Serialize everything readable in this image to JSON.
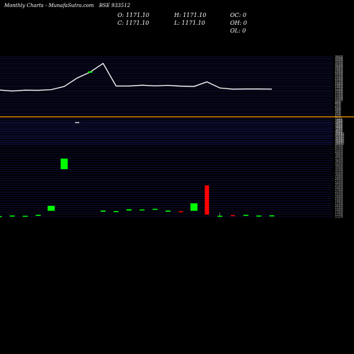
{
  "header": {
    "brand": "Monthly Charts",
    "site": "- MunafaSutra.com",
    "symbol": "BSE 933512"
  },
  "ohlc": {
    "o": "O: 1171.10",
    "c": "C: 1171.10",
    "h": "H: 1171.10",
    "l": "L: 1171.10",
    "oc": "OC: 0",
    "oh": "OH: 0",
    "ol": "OL: 0"
  },
  "colors": {
    "background": "#000000",
    "grid": "#1a1a66",
    "separator": "#ff9900",
    "up": "#00ff00",
    "down": "#ff0000",
    "line": "#ffffff"
  },
  "chart_data": [
    {
      "type": "line",
      "panel": "price",
      "grid": true,
      "x": [
        1,
        2,
        3,
        4,
        5,
        6,
        7,
        8,
        9,
        10,
        11,
        12,
        13,
        14,
        15,
        16,
        17,
        18,
        19,
        20,
        21,
        22
      ],
      "values": [
        1590,
        1530,
        1580,
        1570,
        1610,
        1800,
        2310,
        2670,
        3190,
        1830,
        1830,
        1880,
        1840,
        1870,
        1820,
        1800,
        2080,
        1710,
        1640,
        1650,
        1650,
        1640
      ],
      "extra_marks": [
        {
          "x": 8,
          "y": 2670
        }
      ],
      "ylim": [
        -1650,
        3600
      ],
      "tick_labels": [
        "3600",
        "3500",
        "3400",
        "3300",
        "3200",
        "3100",
        "3000",
        "2900",
        "2800",
        "2700",
        "2600",
        "2500",
        "2400",
        "2300",
        "2200",
        "2100",
        "2000",
        "1900",
        "1800",
        "1700",
        "1600",
        "1500",
        "1400",
        "1300",
        "1200",
        "1100",
        "1000",
        "900",
        "800",
        "700",
        "600",
        "500",
        "400",
        "300",
        "200",
        "100",
        "0",
        "-100",
        "-200",
        "-300",
        "-400",
        "-500",
        "-600",
        "-700",
        "-800",
        "-900",
        "-1000",
        "-1100",
        "-1200",
        "-1300",
        "-1400",
        "-1500",
        "-1600"
      ]
    },
    {
      "type": "bar",
      "panel": "volume",
      "grid": true,
      "bars": [
        {
          "x": 1,
          "start": 1150,
          "end": 1140,
          "dir": "up"
        },
        {
          "x": 2,
          "start": 1170,
          "end": 1160,
          "dir": "up"
        },
        {
          "x": 3,
          "start": 1160,
          "end": 1160,
          "dir": "up"
        },
        {
          "x": 4,
          "start": 1200,
          "end": 1190,
          "dir": "up"
        },
        {
          "x": 5,
          "start": 1600,
          "end": 1380,
          "dir": "up"
        },
        {
          "x": 6,
          "start": 3700,
          "end": 3230,
          "dir": "up"
        },
        {
          "x": 9,
          "start": 1390,
          "end": 1340,
          "dir": "up"
        },
        {
          "x": 10,
          "start": 1370,
          "end": 1360,
          "dir": "up"
        },
        {
          "x": 11,
          "start": 1450,
          "end": 1390,
          "dir": "up"
        },
        {
          "x": 12,
          "start": 1440,
          "end": 1410,
          "dir": "up"
        },
        {
          "x": 13,
          "start": 1470,
          "end": 1450,
          "dir": "up"
        },
        {
          "x": 14,
          "start": 1390,
          "end": 1340,
          "dir": "up"
        },
        {
          "x": 15,
          "start": 1360,
          "end": 1330,
          "dir": "down"
        },
        {
          "x": 16,
          "start": 1710,
          "end": 1380,
          "dir": "up"
        },
        {
          "x": 17,
          "start": 2510,
          "end": 1210,
          "dir": "down"
        },
        {
          "x": 18,
          "start": 1160,
          "end": 1150,
          "dir": "up"
        },
        {
          "x": 19,
          "start": 1190,
          "end": 1180,
          "dir": "down"
        },
        {
          "x": 20,
          "start": 1200,
          "end": 1180,
          "dir": "up"
        },
        {
          "x": 21,
          "start": 1170,
          "end": 1160,
          "dir": "up"
        },
        {
          "x": 22,
          "start": 1180,
          "end": 1170,
          "dir": "up"
        }
      ],
      "extra_marks": [
        {
          "x": 7,
          "y": 5300
        }
      ],
      "wick": {
        "x": 18,
        "high": 1300,
        "low": 1150
      },
      "ylim": [
        1120,
        5400
      ],
      "tick_labels": [
        "5400",
        "5300",
        "5200",
        "5100",
        "5000",
        "4900",
        "4800",
        "4700",
        "4600",
        "4500",
        "4400",
        "4300",
        "4200",
        "4100",
        "4000",
        "3900",
        "3800",
        "3700",
        "3600",
        "3500",
        "3400",
        "3300",
        "3200",
        "3100",
        "3000",
        "2900",
        "2800",
        "2700",
        "2600",
        "2500",
        "2400",
        "2300",
        "2200",
        "2100",
        "2000",
        "1900",
        "1800",
        "1700",
        "1600",
        "1500",
        "1400",
        "1300",
        "1200",
        "1129"
      ]
    }
  ]
}
